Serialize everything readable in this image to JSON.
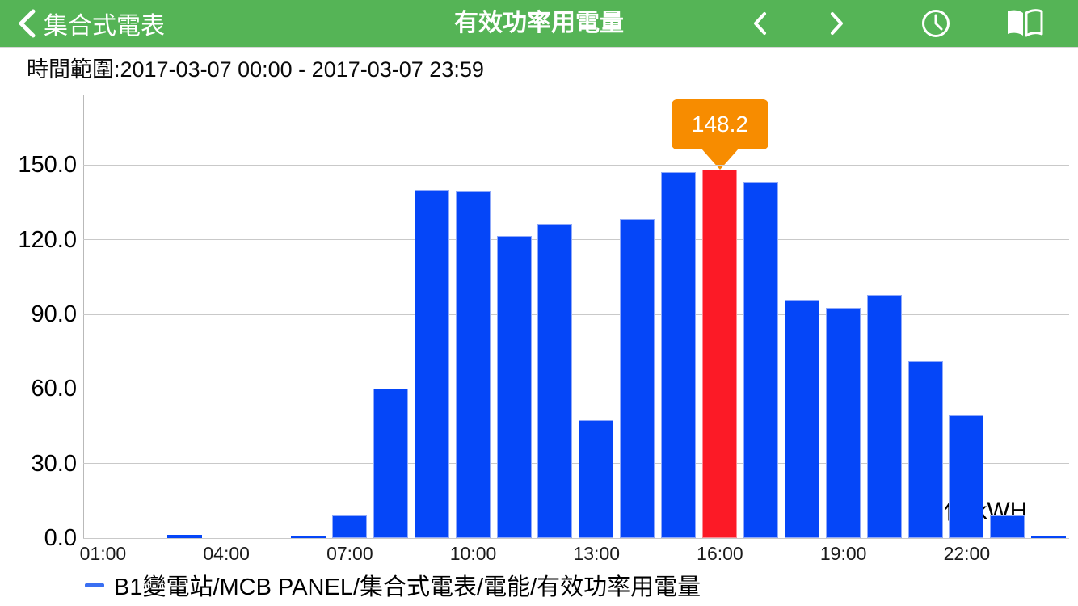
{
  "navbar": {
    "back_label": "集合式電表",
    "title": "有效功率用電量",
    "icons": {
      "back": "chevron-left",
      "prev": "chevron-left",
      "next": "chevron-right",
      "history": "clock",
      "report": "open-book"
    },
    "bg_color": "#55b456"
  },
  "time_range_label": "時間範圍:2017-03-07 00:00 - 2017-03-07 23:59",
  "unit_label": "單位:kWH",
  "legend": {
    "series_label": "B1變電站/MCB PANEL/集合式電表/電能/有效功率用電量",
    "marker_color": "#3a6ff2"
  },
  "tooltip": {
    "value": "148.2",
    "color": "#f78c00"
  },
  "chart_data": {
    "type": "bar",
    "title": "",
    "xlabel": "",
    "ylabel": "kWH",
    "categories": [
      "01:00",
      "02:00",
      "03:00",
      "04:00",
      "05:00",
      "06:00",
      "07:00",
      "08:00",
      "09:00",
      "10:00",
      "11:00",
      "12:00",
      "13:00",
      "14:00",
      "15:00",
      "16:00",
      "17:00",
      "18:00",
      "19:00",
      "20:00",
      "21:00",
      "22:00",
      "23:00",
      "24:00"
    ],
    "values": [
      0,
      0,
      1.2,
      0,
      0,
      0.6,
      9.3,
      60.0,
      140.0,
      139.5,
      121.5,
      126.5,
      47.5,
      128.3,
      147.2,
      148.2,
      143.3,
      96.0,
      92.5,
      97.7,
      71.2,
      49.5,
      9.3,
      1.0
    ],
    "x_tick_labels": [
      "01:00",
      "04:00",
      "07:00",
      "10:00",
      "13:00",
      "16:00",
      "19:00",
      "22:00"
    ],
    "x_tick_slots": [
      0,
      3,
      6,
      9,
      12,
      15,
      18,
      21
    ],
    "y_ticks": [
      0,
      30,
      60,
      90,
      120,
      150
    ],
    "y_tick_labels": [
      "0.0",
      "30.0",
      "60.0",
      "90.0",
      "120.0",
      "150.0"
    ],
    "ylim": [
      0,
      177
    ],
    "grid": true,
    "legend_position": "bottom-left",
    "bar_color": "#0546f8",
    "bar_border_color": "#8fa9f9",
    "highlight_index": 15,
    "highlight_color": "#fc1a26",
    "highlight_border_color": "#fc8a93",
    "highlight_value_label": "148.2"
  }
}
